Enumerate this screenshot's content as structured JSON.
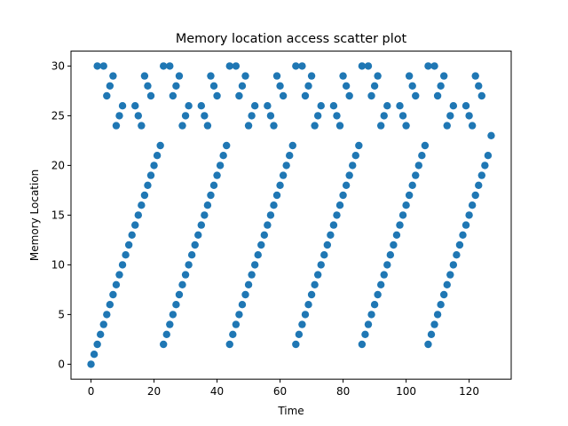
{
  "chart_data": {
    "type": "scatter",
    "title": "Memory location access scatter plot",
    "xlabel": "Time",
    "ylabel": "Memory Location",
    "color": "#1f77b4",
    "xlim": [
      -6.35,
      133.35
    ],
    "ylim": [
      -1.5,
      31.5
    ],
    "xticks": [
      0,
      20,
      40,
      60,
      80,
      100,
      120
    ],
    "yticks": [
      0,
      5,
      10,
      15,
      20,
      25,
      30
    ],
    "x": [
      0,
      1,
      2,
      3,
      4,
      5,
      6,
      7,
      8,
      9,
      10,
      11,
      12,
      13,
      14,
      15,
      16,
      17,
      18,
      19,
      20,
      21,
      22,
      23,
      24,
      25,
      26,
      27,
      28,
      29,
      30,
      31,
      32,
      33,
      34,
      35,
      36,
      37,
      38,
      39,
      40,
      41,
      42,
      43,
      44,
      45,
      46,
      47,
      48,
      49,
      50,
      51,
      52,
      53,
      54,
      55,
      56,
      57,
      58,
      59,
      60,
      61,
      62,
      63,
      64,
      65,
      66,
      67,
      68,
      69,
      70,
      71,
      72,
      73,
      74,
      75,
      76,
      77,
      78,
      79,
      80,
      81,
      82,
      83,
      84,
      85,
      86,
      87,
      88,
      89,
      90,
      91,
      92,
      93,
      94,
      95,
      96,
      97,
      98,
      99,
      100,
      101,
      102,
      103,
      104,
      105,
      106,
      107,
      108,
      109,
      110,
      111,
      112,
      113,
      114,
      115,
      116,
      117,
      118,
      119,
      120,
      121,
      122,
      123,
      124,
      125,
      126,
      127,
      2,
      4,
      5,
      6,
      7,
      8,
      9,
      10,
      14,
      15,
      16,
      17,
      18,
      19,
      23,
      25,
      26,
      27,
      28,
      29,
      30,
      31,
      35,
      36,
      37,
      38,
      39,
      40,
      44,
      46,
      47,
      48,
      49,
      50,
      51,
      52,
      56,
      57,
      58,
      59,
      60,
      61,
      65,
      67,
      68,
      69,
      70,
      71,
      72,
      73,
      77,
      78,
      79,
      80,
      81,
      82,
      86,
      88,
      89,
      90,
      91,
      92,
      93,
      94,
      98,
      99,
      100,
      101,
      102,
      103,
      107,
      109,
      110,
      111,
      112,
      113,
      114,
      115,
      119,
      120,
      121,
      122,
      123,
      124
    ],
    "y": [
      0,
      1,
      2,
      3,
      4,
      5,
      6,
      7,
      8,
      9,
      10,
      11,
      12,
      13,
      14,
      15,
      16,
      17,
      18,
      19,
      20,
      21,
      22,
      2,
      3,
      4,
      5,
      6,
      7,
      8,
      9,
      10,
      11,
      12,
      13,
      14,
      15,
      16,
      17,
      18,
      19,
      20,
      21,
      22,
      2,
      3,
      4,
      5,
      6,
      7,
      8,
      9,
      10,
      11,
      12,
      13,
      14,
      15,
      16,
      17,
      18,
      19,
      20,
      21,
      22,
      2,
      3,
      4,
      5,
      6,
      7,
      8,
      9,
      10,
      11,
      12,
      13,
      14,
      15,
      16,
      17,
      18,
      19,
      20,
      21,
      22,
      2,
      3,
      4,
      5,
      6,
      7,
      8,
      9,
      10,
      11,
      12,
      13,
      14,
      15,
      16,
      17,
      18,
      19,
      20,
      21,
      22,
      2,
      3,
      4,
      5,
      6,
      7,
      8,
      9,
      10,
      11,
      12,
      13,
      14,
      15,
      16,
      17,
      18,
      19,
      20,
      21,
      23,
      30,
      30,
      27,
      28,
      29,
      24,
      25,
      26,
      26,
      25,
      24,
      29,
      28,
      27,
      30,
      30,
      27,
      28,
      29,
      24,
      25,
      26,
      26,
      25,
      24,
      29,
      28,
      27,
      30,
      30,
      27,
      28,
      29,
      24,
      25,
      26,
      26,
      25,
      24,
      29,
      28,
      27,
      30,
      30,
      27,
      28,
      29,
      24,
      25,
      26,
      26,
      25,
      24,
      29,
      28,
      27,
      30,
      30,
      27,
      28,
      29,
      24,
      25,
      26,
      26,
      25,
      24,
      29,
      28,
      27,
      30,
      30,
      27,
      28,
      29,
      24,
      25,
      26,
      26,
      25,
      24,
      29,
      28,
      27
    ]
  }
}
